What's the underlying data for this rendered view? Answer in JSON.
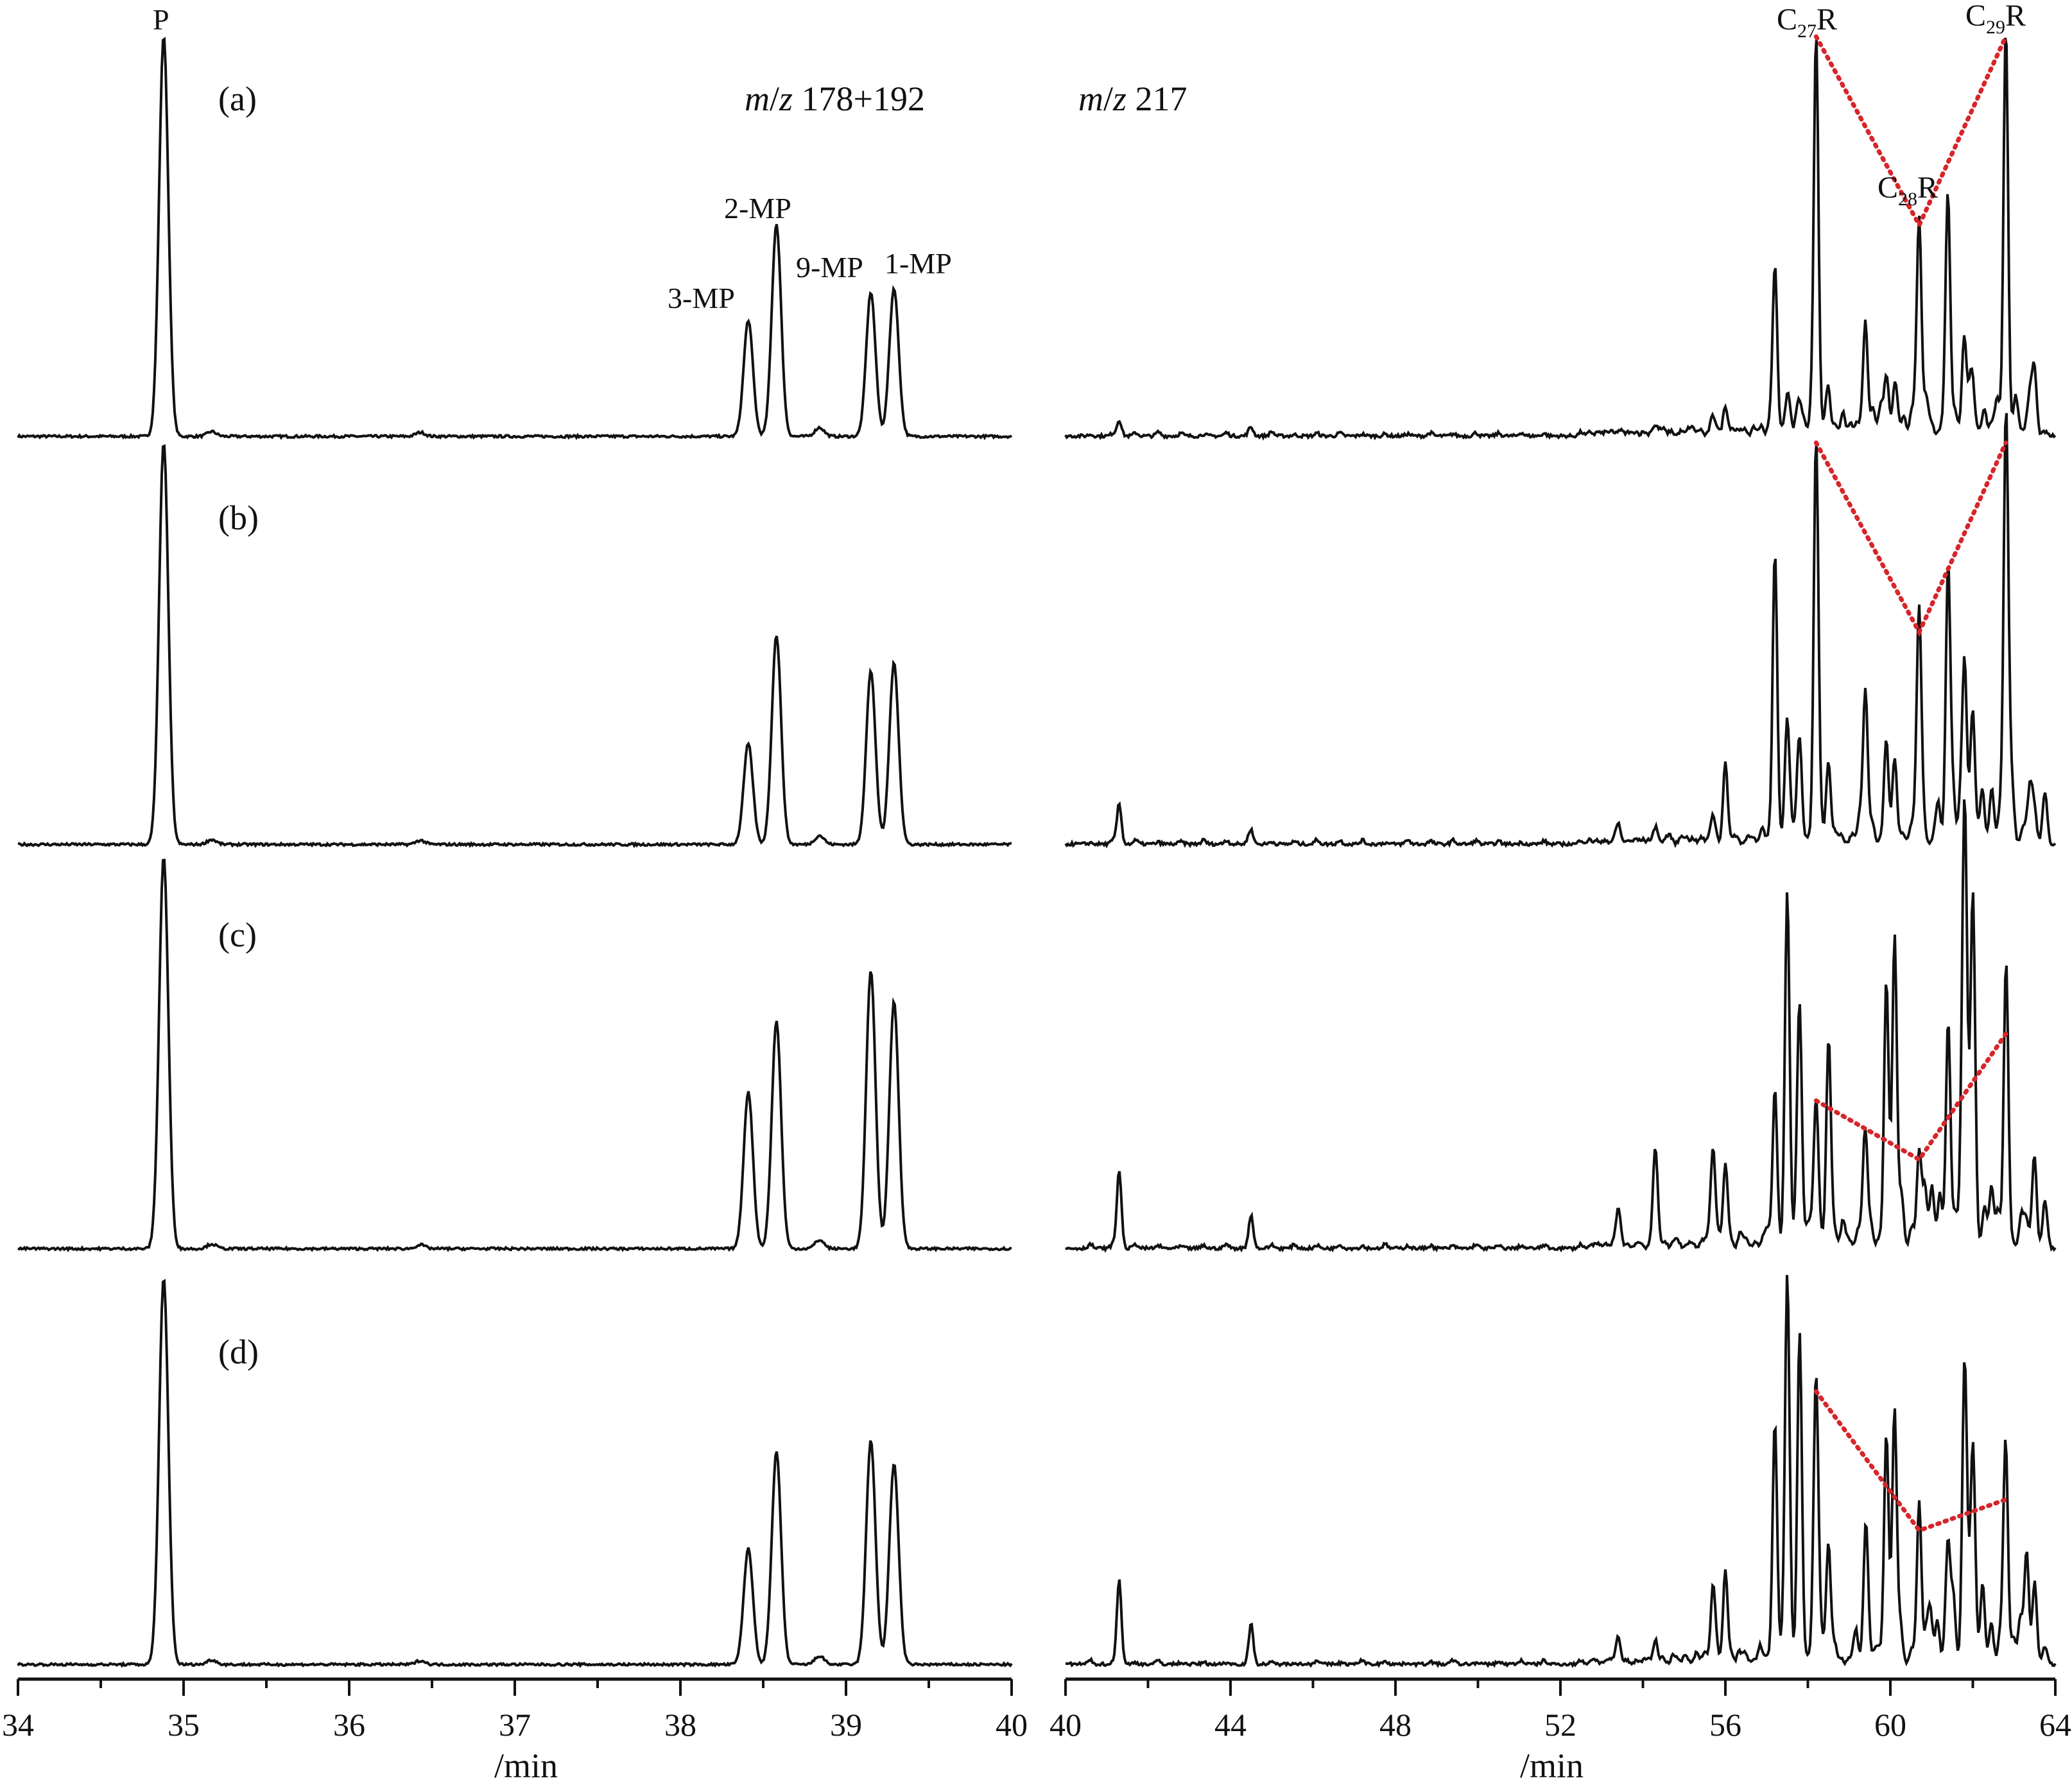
{
  "chart_data": [
    {
      "type": "line",
      "title": "m/z 178+192",
      "xlabel": "/min",
      "xlim": [
        34,
        40
      ],
      "ticks": [
        "34",
        "35",
        "36",
        "37",
        "38",
        "39",
        "40"
      ],
      "panels": [
        "(a)",
        "(b)",
        "(c)",
        "(d)"
      ],
      "peak_labels": [
        "P",
        "3-MP",
        "2-MP",
        "9-MP",
        "1-MP"
      ],
      "peaks": {
        "P": {
          "t": 34.88,
          "heights": [
            1.0,
            1.0,
            1.0,
            1.0
          ]
        },
        "3-MP": {
          "t": 38.41,
          "heights": [
            0.29,
            0.25,
            0.4,
            0.3
          ]
        },
        "2-MP": {
          "t": 38.58,
          "heights": [
            0.53,
            0.52,
            0.58,
            0.55
          ]
        },
        "9-MP": {
          "t": 39.15,
          "heights": [
            0.36,
            0.43,
            0.71,
            0.58
          ]
        },
        "1-MP": {
          "t": 39.29,
          "heights": [
            0.37,
            0.45,
            0.63,
            0.52
          ]
        }
      },
      "minor_peaks": [
        {
          "t": 35.17,
          "height": 0.012
        },
        {
          "t": 36.43,
          "height": 0.01
        },
        {
          "t": 38.84,
          "height": 0.022
        }
      ]
    },
    {
      "type": "line",
      "title": "m/z 217",
      "xlabel": "/min",
      "xlim": [
        40,
        64
      ],
      "ticks": [
        "40",
        "44",
        "48",
        "52",
        "56",
        "60",
        "64"
      ],
      "peak_labels": [
        "C27R",
        "C28R",
        "C29R"
      ],
      "sterane_R": {
        "C27R": {
          "t": 58.2,
          "heights": [
            1.0,
            1.0,
            0.38,
            0.71
          ]
        },
        "C28R": {
          "t": 60.7,
          "heights": [
            0.53,
            0.53,
            0.23,
            0.35
          ]
        },
        "C29R": {
          "t": 62.8,
          "heights": [
            1.0,
            1.0,
            0.55,
            0.43
          ]
        }
      },
      "other_peaks": [
        {
          "t": 41.3,
          "heights": [
            0.04,
            0.1,
            0.2,
            0.22
          ]
        },
        {
          "t": 44.5,
          "heights": [
            0.02,
            0.03,
            0.08,
            0.1
          ]
        },
        {
          "t": 53.4,
          "heights": [
            0.01,
            0.04,
            0.1,
            0.06
          ]
        },
        {
          "t": 54.3,
          "heights": [
            0.02,
            0.03,
            0.25,
            0.05
          ]
        },
        {
          "t": 55.7,
          "heights": [
            0.04,
            0.06,
            0.25,
            0.2
          ]
        },
        {
          "t": 56.0,
          "heights": [
            0.06,
            0.18,
            0.2,
            0.22
          ]
        },
        {
          "t": 57.2,
          "heights": [
            0.4,
            0.7,
            0.4,
            0.6
          ]
        },
        {
          "t": 57.5,
          "heights": [
            0.08,
            0.3,
            0.85,
            1.0
          ]
        },
        {
          "t": 57.8,
          "heights": [
            0.06,
            0.25,
            0.6,
            0.85
          ]
        },
        {
          "t": 58.5,
          "heights": [
            0.08,
            0.15,
            0.45,
            0.3
          ]
        },
        {
          "t": 59.4,
          "heights": [
            0.25,
            0.35,
            0.25,
            0.3
          ]
        },
        {
          "t": 59.9,
          "heights": [
            0.12,
            0.25,
            0.6,
            0.55
          ]
        },
        {
          "t": 60.1,
          "heights": [
            0.1,
            0.2,
            0.7,
            0.6
          ]
        },
        {
          "t": 61.4,
          "heights": [
            0.53,
            0.65,
            0.45,
            0.3
          ]
        },
        {
          "t": 61.8,
          "heights": [
            0.18,
            0.45,
            1.0,
            0.75
          ]
        },
        {
          "t": 62.0,
          "heights": [
            0.1,
            0.3,
            0.9,
            0.55
          ]
        },
        {
          "t": 63.3,
          "heights": [
            0.02,
            0.03,
            0.05,
            0.2
          ]
        },
        {
          "t": 63.5,
          "heights": [
            0.02,
            0.03,
            0.05,
            0.18
          ]
        }
      ]
    }
  ]
}
